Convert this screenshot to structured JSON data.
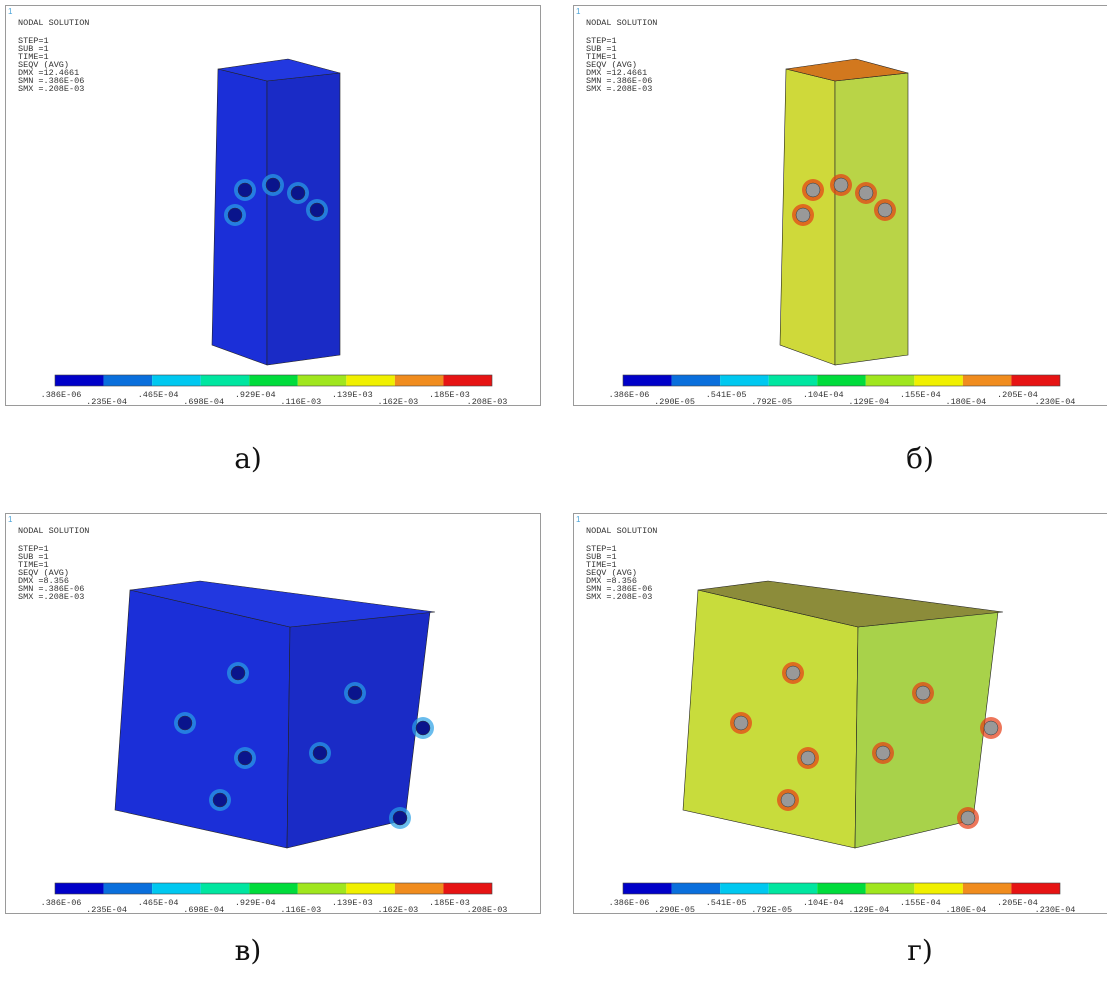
{
  "panels": [
    {
      "index": "1",
      "header": [
        "NODAL SOLUTION",
        "STEP=1",
        "SUB =1",
        "TIME=1",
        "SEQV      (AVG)",
        "DMX =12.4661",
        "SMN =.386E-06",
        "SMX =.208E-03"
      ],
      "legend_labels": [
        ".386E-06",
        ".235E-04",
        ".465E-04",
        ".698E-04",
        ".929E-04",
        ".116E-03",
        ".139E-03",
        ".162E-03",
        ".185E-03",
        ".208E-03"
      ],
      "caption": "а)"
    },
    {
      "index": "1",
      "header": [
        "NODAL SOLUTION",
        "STEP=1",
        "SUB =1",
        "TIME=1",
        "SEQV      (AVG)",
        "DMX =12.4661",
        "SMN =.386E-06",
        "SMX =.208E-03"
      ],
      "legend_labels": [
        ".386E-06",
        ".290E-05",
        ".541E-05",
        ".792E-05",
        ".104E-04",
        ".129E-04",
        ".155E-04",
        ".180E-04",
        ".205E-04",
        ".230E-04"
      ],
      "caption": "б)"
    },
    {
      "index": "1",
      "header": [
        "NODAL SOLUTION",
        "STEP=1",
        "SUB =1",
        "TIME=1",
        "SEQV      (AVG)",
        "DMX =8.356",
        "SMN =.386E-06",
        "SMX =.208E-03"
      ],
      "legend_labels": [
        ".386E-06",
        ".235E-04",
        ".465E-04",
        ".698E-04",
        ".929E-04",
        ".116E-03",
        ".139E-03",
        ".162E-03",
        ".185E-03",
        ".208E-03"
      ],
      "caption": "в)"
    },
    {
      "index": "1",
      "header": [
        "NODAL SOLUTION",
        "STEP=1",
        "SUB =1",
        "TIME=1",
        "SEQV      (AVG)",
        "DMX =8.356",
        "SMN =.386E-06",
        "SMX =.208E-03"
      ],
      "legend_labels": [
        ".386E-06",
        ".290E-05",
        ".541E-05",
        ".792E-05",
        ".104E-04",
        ".129E-04",
        ".155E-04",
        ".180E-04",
        ".205E-04",
        ".230E-04"
      ],
      "caption": "г)"
    }
  ]
}
